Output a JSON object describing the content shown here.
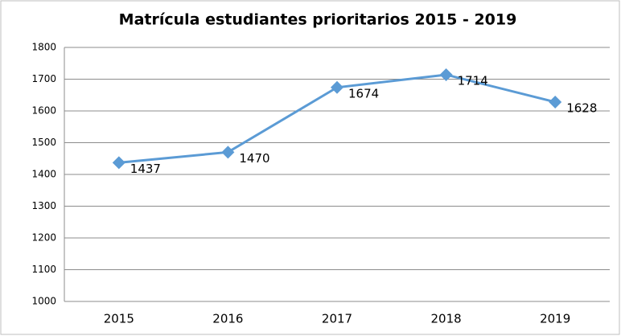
{
  "chart_data": {
    "type": "line",
    "title": "Matrícula estudiantes prioritarios 2015 - 2019",
    "categories": [
      "2015",
      "2016",
      "2017",
      "2018",
      "2019"
    ],
    "values": [
      1437,
      1470,
      1674,
      1714,
      1628
    ],
    "color": "#5b9bd5",
    "ylim": [
      1000,
      1800
    ],
    "yticks": [
      1000,
      1100,
      1200,
      1300,
      1400,
      1500,
      1600,
      1700,
      1800
    ],
    "grid": true
  }
}
